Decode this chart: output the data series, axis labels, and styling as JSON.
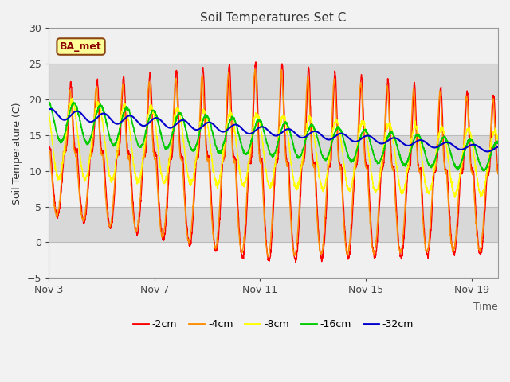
{
  "title": "Soil Temperatures Set C",
  "xlabel": "Time",
  "ylabel": "Soil Temperature (C)",
  "ylim": [
    -5,
    30
  ],
  "yticks": [
    -5,
    0,
    5,
    10,
    15,
    20,
    25,
    30
  ],
  "xtick_labels": [
    "Nov 3",
    "Nov 7",
    "Nov 11",
    "Nov 15",
    "Nov 19"
  ],
  "xtick_positions": [
    0,
    4,
    8,
    12,
    16
  ],
  "n_days": 17,
  "spd": 144,
  "fig_bg": "#f2f2f2",
  "plot_bg": "#e8e8e8",
  "band_light": "#f0f0f0",
  "band_dark": "#d8d8d8",
  "grid_line_color": "#cccccc",
  "annotation_text": "BA_met",
  "annotation_fg": "#8B0000",
  "annotation_bg": "#ffff99",
  "annotation_border": "#8B4513",
  "colors": {
    "-2cm": "#ff0000",
    "-4cm": "#ff8c00",
    "-8cm": "#ffff00",
    "-16cm": "#00cc00",
    "-32cm": "#0000cc"
  },
  "legend_order": [
    "-2cm",
    "-4cm",
    "-8cm",
    "-16cm",
    "-32cm"
  ],
  "lw_thin": 1.0,
  "lw_blue": 1.5
}
